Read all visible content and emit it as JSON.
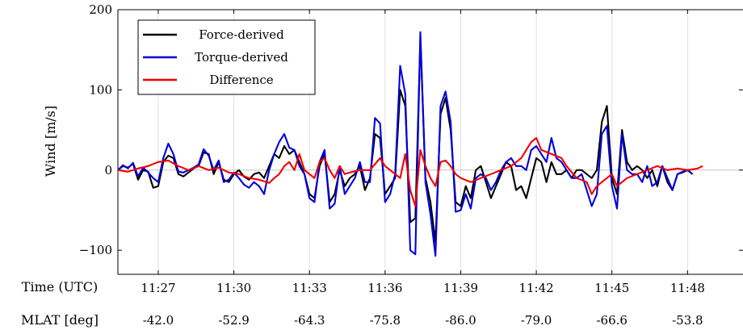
{
  "chart_data": {
    "type": "line",
    "xlabel": "Time (UTC)",
    "ylabel": "Wind [m/s]",
    "secondary_axis_label": "MLAT [deg]",
    "xlim": [
      0,
      180
    ],
    "ylim": [
      -130,
      200
    ],
    "yticks": [
      200,
      100,
      0,
      -100
    ],
    "ytick_labels": [
      "200",
      "100",
      "0",
      "−100"
    ],
    "xticks": [
      {
        "x": 0,
        "time": "11:27",
        "mlat": "-42.0"
      },
      {
        "x": 3,
        "time": "11:30",
        "mlat": "-52.9"
      },
      {
        "x": 6,
        "time": "11:33",
        "mlat": "-64.3"
      },
      {
        "x": 9,
        "time": "11:36",
        "mlat": "-75.8"
      },
      {
        "x": 12,
        "time": "11:39",
        "mlat": "-86.0"
      },
      {
        "x": 15,
        "time": "11:42",
        "mlat": "-79.0"
      },
      {
        "x": 18,
        "time": "11:45",
        "mlat": "-66.6"
      },
      {
        "x": 21,
        "time": "11:48",
        "mlat": "-53.8"
      }
    ],
    "x_unit_note": "minutes after 11:27",
    "x_start": -1.6,
    "x_end": 23.2,
    "legend_position": "top-left",
    "series": [
      {
        "name": "Force-derived",
        "color": "#000000",
        "points": [
          [
            -1.6,
            0
          ],
          [
            -1.4,
            5
          ],
          [
            -1.2,
            3
          ],
          [
            -1.0,
            8
          ],
          [
            -0.8,
            -12
          ],
          [
            -0.6,
            0
          ],
          [
            -0.4,
            -2
          ],
          [
            -0.2,
            -22
          ],
          [
            0.0,
            -20
          ],
          [
            0.2,
            10
          ],
          [
            0.4,
            18
          ],
          [
            0.6,
            15
          ],
          [
            0.8,
            -5
          ],
          [
            1.0,
            -8
          ],
          [
            1.2,
            -3
          ],
          [
            1.4,
            2
          ],
          [
            1.6,
            5
          ],
          [
            1.8,
            22
          ],
          [
            2.0,
            20
          ],
          [
            2.2,
            -5
          ],
          [
            2.4,
            10
          ],
          [
            2.6,
            -12
          ],
          [
            2.8,
            -15
          ],
          [
            3.0,
            -5
          ],
          [
            3.2,
            0
          ],
          [
            3.4,
            -8
          ],
          [
            3.6,
            -12
          ],
          [
            3.8,
            -5
          ],
          [
            4.0,
            -3
          ],
          [
            4.2,
            -10
          ],
          [
            4.4,
            5
          ],
          [
            4.6,
            20
          ],
          [
            4.8,
            15
          ],
          [
            5.0,
            30
          ],
          [
            5.2,
            20
          ],
          [
            5.4,
            25
          ],
          [
            5.6,
            10
          ],
          [
            5.8,
            -5
          ],
          [
            6.0,
            -30
          ],
          [
            6.2,
            -35
          ],
          [
            6.4,
            5
          ],
          [
            6.6,
            20
          ],
          [
            6.8,
            -40
          ],
          [
            7.0,
            -30
          ],
          [
            7.2,
            0
          ],
          [
            7.4,
            -20
          ],
          [
            7.6,
            -10
          ],
          [
            7.8,
            -5
          ],
          [
            8.0,
            5
          ],
          [
            8.2,
            -25
          ],
          [
            8.4,
            -10
          ],
          [
            8.6,
            45
          ],
          [
            8.8,
            40
          ],
          [
            9.0,
            -30
          ],
          [
            9.2,
            -20
          ],
          [
            9.4,
            -10
          ],
          [
            9.6,
            100
          ],
          [
            9.8,
            80
          ],
          [
            10.0,
            -65
          ],
          [
            10.2,
            -60
          ],
          [
            10.4,
            165
          ],
          [
            10.6,
            -10
          ],
          [
            10.8,
            -40
          ],
          [
            11.0,
            -90
          ],
          [
            11.2,
            70
          ],
          [
            11.4,
            90
          ],
          [
            11.6,
            50
          ],
          [
            11.8,
            -40
          ],
          [
            12.0,
            -45
          ],
          [
            12.2,
            -20
          ],
          [
            12.4,
            -35
          ],
          [
            12.6,
            0
          ],
          [
            12.8,
            5
          ],
          [
            13.0,
            -15
          ],
          [
            13.2,
            -35
          ],
          [
            13.4,
            -20
          ],
          [
            13.6,
            -5
          ],
          [
            13.8,
            10
          ],
          [
            14.0,
            5
          ],
          [
            14.2,
            -25
          ],
          [
            14.4,
            -20
          ],
          [
            14.6,
            -35
          ],
          [
            14.8,
            -10
          ],
          [
            15.0,
            15
          ],
          [
            15.2,
            10
          ],
          [
            15.4,
            -15
          ],
          [
            15.6,
            10
          ],
          [
            15.8,
            -5
          ],
          [
            16.0,
            -5
          ],
          [
            16.2,
            0
          ],
          [
            16.4,
            -10
          ],
          [
            16.6,
            0
          ],
          [
            16.8,
            0
          ],
          [
            17.0,
            -5
          ],
          [
            17.2,
            -10
          ],
          [
            17.4,
            0
          ],
          [
            17.6,
            60
          ],
          [
            17.8,
            80
          ],
          [
            18.0,
            -10
          ],
          [
            18.2,
            -30
          ],
          [
            18.4,
            50
          ],
          [
            18.6,
            10
          ],
          [
            18.8,
            0
          ],
          [
            19.0,
            5
          ],
          [
            19.2,
            0
          ],
          [
            19.4,
            -10
          ],
          [
            19.6,
            0
          ],
          [
            19.8,
            -20
          ],
          [
            20.0,
            5
          ],
          [
            20.2,
            -15
          ],
          [
            20.4,
            -25
          ],
          [
            20.6,
            -5
          ],
          [
            20.8,
            -3
          ],
          [
            21.0,
            0
          ],
          [
            21.2,
            -5
          ]
        ]
      },
      {
        "name": "Torque-derived",
        "color": "#0000dd",
        "points": [
          [
            -1.6,
            0
          ],
          [
            -1.4,
            6
          ],
          [
            -1.2,
            2
          ],
          [
            -1.0,
            9
          ],
          [
            -0.8,
            -8
          ],
          [
            -0.6,
            3
          ],
          [
            -0.4,
            -3
          ],
          [
            -0.2,
            -10
          ],
          [
            0.0,
            -15
          ],
          [
            0.2,
            15
          ],
          [
            0.4,
            33
          ],
          [
            0.6,
            20
          ],
          [
            0.8,
            -2
          ],
          [
            1.0,
            -3
          ],
          [
            1.2,
            0
          ],
          [
            1.4,
            3
          ],
          [
            1.6,
            7
          ],
          [
            1.8,
            26
          ],
          [
            2.0,
            18
          ],
          [
            2.2,
            0
          ],
          [
            2.4,
            12
          ],
          [
            2.6,
            -15
          ],
          [
            2.8,
            -12
          ],
          [
            3.0,
            -3
          ],
          [
            3.2,
            -10
          ],
          [
            3.4,
            -18
          ],
          [
            3.6,
            -22
          ],
          [
            3.8,
            -15
          ],
          [
            4.0,
            -20
          ],
          [
            4.2,
            -30
          ],
          [
            4.4,
            0
          ],
          [
            4.6,
            20
          ],
          [
            4.8,
            35
          ],
          [
            5.0,
            45
          ],
          [
            5.2,
            28
          ],
          [
            5.4,
            25
          ],
          [
            5.6,
            5
          ],
          [
            5.8,
            -5
          ],
          [
            6.0,
            -35
          ],
          [
            6.2,
            -40
          ],
          [
            6.4,
            10
          ],
          [
            6.6,
            25
          ],
          [
            6.8,
            -48
          ],
          [
            7.0,
            -42
          ],
          [
            7.2,
            5
          ],
          [
            7.4,
            -30
          ],
          [
            7.6,
            -20
          ],
          [
            7.8,
            -10
          ],
          [
            8.0,
            10
          ],
          [
            8.2,
            -15
          ],
          [
            8.4,
            -15
          ],
          [
            8.6,
            65
          ],
          [
            8.8,
            58
          ],
          [
            9.0,
            -40
          ],
          [
            9.2,
            -30
          ],
          [
            9.4,
            -5
          ],
          [
            9.6,
            130
          ],
          [
            9.8,
            95
          ],
          [
            10.0,
            -100
          ],
          [
            10.2,
            -105
          ],
          [
            10.4,
            172
          ],
          [
            10.6,
            -15
          ],
          [
            10.8,
            -55
          ],
          [
            11.0,
            -107
          ],
          [
            11.2,
            80
          ],
          [
            11.4,
            98
          ],
          [
            11.6,
            60
          ],
          [
            11.8,
            -52
          ],
          [
            12.0,
            -50
          ],
          [
            12.2,
            -30
          ],
          [
            12.4,
            -48
          ],
          [
            12.6,
            -10
          ],
          [
            12.8,
            -5
          ],
          [
            13.0,
            -10
          ],
          [
            13.2,
            -25
          ],
          [
            13.4,
            -15
          ],
          [
            13.6,
            0
          ],
          [
            13.8,
            10
          ],
          [
            14.0,
            15
          ],
          [
            14.2,
            5
          ],
          [
            14.4,
            5
          ],
          [
            14.6,
            0
          ],
          [
            14.8,
            25
          ],
          [
            15.0,
            30
          ],
          [
            15.2,
            20
          ],
          [
            15.4,
            10
          ],
          [
            15.6,
            40
          ],
          [
            15.8,
            15
          ],
          [
            16.0,
            10
          ],
          [
            16.2,
            0
          ],
          [
            16.4,
            -10
          ],
          [
            16.6,
            -10
          ],
          [
            16.8,
            -5
          ],
          [
            17.0,
            -25
          ],
          [
            17.2,
            -45
          ],
          [
            17.4,
            -30
          ],
          [
            17.6,
            45
          ],
          [
            17.8,
            55
          ],
          [
            18.0,
            -20
          ],
          [
            18.2,
            -48
          ],
          [
            18.4,
            45
          ],
          [
            18.6,
            0
          ],
          [
            18.8,
            -5
          ],
          [
            19.0,
            -5
          ],
          [
            19.2,
            -15
          ],
          [
            19.4,
            5
          ],
          [
            19.6,
            -20
          ],
          [
            19.8,
            -15
          ],
          [
            20.0,
            5
          ],
          [
            20.2,
            -10
          ],
          [
            20.4,
            -25
          ],
          [
            20.6,
            -5
          ],
          [
            20.8,
            -2
          ],
          [
            21.0,
            0
          ],
          [
            21.2,
            -5
          ]
        ]
      },
      {
        "name": "Difference",
        "color": "#ee0000",
        "points": [
          [
            -1.6,
            0
          ],
          [
            -1.2,
            -2
          ],
          [
            -0.8,
            2
          ],
          [
            -0.4,
            5
          ],
          [
            0.0,
            10
          ],
          [
            0.4,
            12
          ],
          [
            0.8,
            5
          ],
          [
            1.2,
            0
          ],
          [
            1.6,
            5
          ],
          [
            2.0,
            0
          ],
          [
            2.4,
            3
          ],
          [
            2.8,
            -3
          ],
          [
            3.2,
            -5
          ],
          [
            3.6,
            -10
          ],
          [
            4.0,
            -12
          ],
          [
            4.4,
            -16
          ],
          [
            4.6,
            -10
          ],
          [
            4.8,
            -5
          ],
          [
            5.0,
            5
          ],
          [
            5.2,
            10
          ],
          [
            5.4,
            0
          ],
          [
            5.6,
            20
          ],
          [
            5.8,
            0
          ],
          [
            6.0,
            -5
          ],
          [
            6.2,
            -10
          ],
          [
            6.4,
            10
          ],
          [
            6.6,
            15
          ],
          [
            6.8,
            0
          ],
          [
            7.0,
            -10
          ],
          [
            7.2,
            5
          ],
          [
            7.4,
            -5
          ],
          [
            7.6,
            -3
          ],
          [
            8.0,
            0
          ],
          [
            8.4,
            0
          ],
          [
            8.8,
            15
          ],
          [
            9.0,
            5
          ],
          [
            9.4,
            -5
          ],
          [
            9.6,
            -10
          ],
          [
            9.8,
            20
          ],
          [
            10.0,
            -25
          ],
          [
            10.2,
            -45
          ],
          [
            10.4,
            25
          ],
          [
            10.6,
            5
          ],
          [
            10.8,
            -10
          ],
          [
            11.0,
            -20
          ],
          [
            11.2,
            10
          ],
          [
            11.4,
            12
          ],
          [
            11.6,
            5
          ],
          [
            11.8,
            -5
          ],
          [
            12.0,
            -10
          ],
          [
            12.4,
            -15
          ],
          [
            12.8,
            -10
          ],
          [
            13.2,
            -5
          ],
          [
            13.6,
            0
          ],
          [
            14.0,
            5
          ],
          [
            14.4,
            15
          ],
          [
            14.6,
            25
          ],
          [
            14.8,
            35
          ],
          [
            15.0,
            40
          ],
          [
            15.2,
            25
          ],
          [
            15.6,
            20
          ],
          [
            16.0,
            15
          ],
          [
            16.2,
            5
          ],
          [
            16.6,
            -10
          ],
          [
            17.0,
            -15
          ],
          [
            17.2,
            -30
          ],
          [
            17.4,
            -20
          ],
          [
            17.6,
            -15
          ],
          [
            18.0,
            -5
          ],
          [
            18.2,
            -20
          ],
          [
            18.6,
            -10
          ],
          [
            19.0,
            -5
          ],
          [
            19.4,
            0
          ],
          [
            19.8,
            5
          ],
          [
            20.2,
            0
          ],
          [
            20.6,
            2
          ],
          [
            21.0,
            0
          ],
          [
            21.4,
            2
          ],
          [
            21.6,
            5
          ]
        ]
      }
    ]
  }
}
